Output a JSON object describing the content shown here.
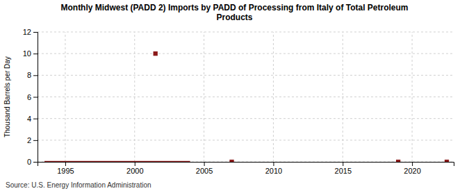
{
  "chart_data": {
    "type": "line",
    "title": "Monthly Midwest (PADD 2) Imports by PADD of Processing from Italy of Total Petroleum\nProducts",
    "ylabel": "Thousand Barrels per Day",
    "source": "Source: U.S. Energy Information Administration",
    "xlim": [
      1993.0,
      2023.0
    ],
    "ylim": [
      0,
      12
    ],
    "xticks": [
      1995,
      2000,
      2005,
      2010,
      2015,
      2020
    ],
    "yticks": [
      0,
      2,
      4,
      6,
      8,
      10,
      12
    ],
    "grid": true,
    "series": [
      {
        "type": "line",
        "line_style": "solid",
        "color": "#8b1a1a",
        "x": [
          1993.5,
          2004.0
        ],
        "values": [
          0.0,
          0.0
        ]
      },
      {
        "type": "scatter",
        "marker": "square",
        "color": "#8b1a1a",
        "x": [
          2001.5
        ],
        "values": [
          10.0
        ]
      },
      {
        "type": "scatter",
        "marker": "square",
        "color": "#8b1a1a",
        "x": [
          2007.0,
          2019.0,
          2022.5
        ],
        "values": [
          0.0,
          0.0,
          0.0
        ]
      }
    ]
  }
}
